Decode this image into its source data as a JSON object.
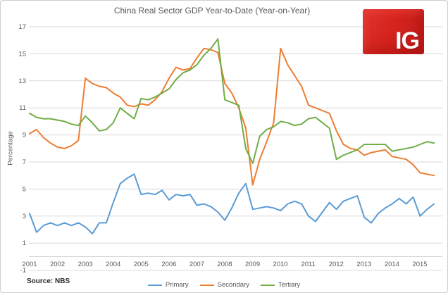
{
  "source_note": "Source: NBS",
  "logo": {
    "text": "IG",
    "bg_color": "#d6231e",
    "text_color": "#ffffff"
  },
  "chart_data": {
    "type": "line",
    "title": "China Real Sector GDP Year-to-Date (Year-on-Year)",
    "ylabel": "Percentage",
    "xlabel": "",
    "ylim": [
      -1,
      17
    ],
    "yticks": [
      17,
      15,
      13,
      11,
      9,
      7,
      5,
      3,
      1,
      -1
    ],
    "x_tick_labels": [
      "2001",
      "2002",
      "2003",
      "2004",
      "2005",
      "2006",
      "2007",
      "2008",
      "2009",
      "2010",
      "2011",
      "2012",
      "2013",
      "2014",
      "2015"
    ],
    "grid": "horizontal",
    "legend_position": "bottom",
    "x": [
      "2001Q1",
      "2001Q2",
      "2001Q3",
      "2001Q4",
      "2002Q1",
      "2002Q2",
      "2002Q3",
      "2002Q4",
      "2003Q1",
      "2003Q2",
      "2003Q3",
      "2003Q4",
      "2004Q1",
      "2004Q2",
      "2004Q3",
      "2004Q4",
      "2005Q1",
      "2005Q2",
      "2005Q3",
      "2005Q4",
      "2006Q1",
      "2006Q2",
      "2006Q3",
      "2006Q4",
      "2007Q1",
      "2007Q2",
      "2007Q3",
      "2007Q4",
      "2008Q1",
      "2008Q2",
      "2008Q3",
      "2008Q4",
      "2009Q1",
      "2009Q2",
      "2009Q3",
      "2009Q4",
      "2010Q1",
      "2010Q2",
      "2010Q3",
      "2010Q4",
      "2011Q1",
      "2011Q2",
      "2011Q3",
      "2011Q4",
      "2012Q1",
      "2012Q2",
      "2012Q3",
      "2012Q4",
      "2013Q1",
      "2013Q2",
      "2013Q3",
      "2013Q4",
      "2014Q1",
      "2014Q2",
      "2014Q3",
      "2014Q4",
      "2015Q1",
      "2015Q2",
      "2015Q3"
    ],
    "series": [
      {
        "name": "Primary",
        "color": "#5B9BD5",
        "values": [
          3.2,
          1.8,
          2.3,
          2.5,
          2.3,
          2.5,
          2.3,
          2.5,
          2.2,
          1.7,
          2.5,
          2.5,
          4.0,
          5.4,
          5.8,
          6.1,
          4.6,
          4.7,
          4.6,
          4.9,
          4.2,
          4.6,
          4.5,
          4.6,
          3.8,
          3.9,
          3.7,
          3.3,
          2.7,
          3.6,
          4.7,
          5.4,
          3.5,
          3.6,
          3.7,
          3.6,
          3.4,
          3.9,
          4.1,
          3.9,
          3.0,
          2.6,
          3.3,
          4.0,
          3.5,
          4.1,
          4.3,
          4.5,
          2.9,
          2.5,
          3.2,
          3.6,
          3.9,
          4.3,
          3.9,
          4.4,
          3.0,
          3.5,
          3.9
        ]
      },
      {
        "name": "Secondary",
        "color": "#ED7D31",
        "values": [
          9.1,
          9.4,
          8.8,
          8.4,
          8.1,
          8.0,
          8.2,
          8.6,
          13.2,
          12.8,
          12.6,
          12.5,
          12.1,
          11.8,
          11.2,
          11.1,
          11.3,
          11.2,
          11.6,
          12.2,
          13.2,
          14.0,
          13.8,
          13.9,
          14.7,
          15.4,
          15.3,
          15.1,
          12.8,
          12.1,
          11.0,
          9.5,
          5.3,
          7.2,
          8.5,
          9.9,
          15.4,
          14.2,
          13.4,
          12.6,
          11.2,
          11.0,
          10.8,
          10.6,
          9.3,
          8.3,
          8.0,
          7.9,
          7.5,
          7.7,
          7.8,
          7.9,
          7.4,
          7.3,
          7.2,
          6.8,
          6.2,
          6.1,
          6.0
        ]
      },
      {
        "name": "Tertiary",
        "color": "#70AD47",
        "values": [
          10.6,
          10.3,
          10.2,
          10.2,
          10.1,
          10.0,
          9.8,
          9.7,
          10.4,
          9.9,
          9.3,
          9.4,
          9.9,
          11.0,
          10.6,
          10.2,
          11.7,
          11.6,
          11.8,
          12.1,
          12.4,
          13.1,
          13.6,
          13.8,
          14.2,
          14.9,
          15.4,
          16.1,
          11.6,
          11.4,
          11.2,
          8.0,
          6.9,
          8.9,
          9.4,
          9.6,
          10.0,
          9.9,
          9.7,
          9.8,
          10.2,
          10.3,
          9.9,
          9.5,
          7.2,
          7.5,
          7.7,
          7.9,
          8.3,
          8.3,
          8.3,
          8.3,
          7.8,
          7.9,
          8.0,
          8.1,
          8.3,
          8.5,
          8.4
        ]
      }
    ]
  }
}
